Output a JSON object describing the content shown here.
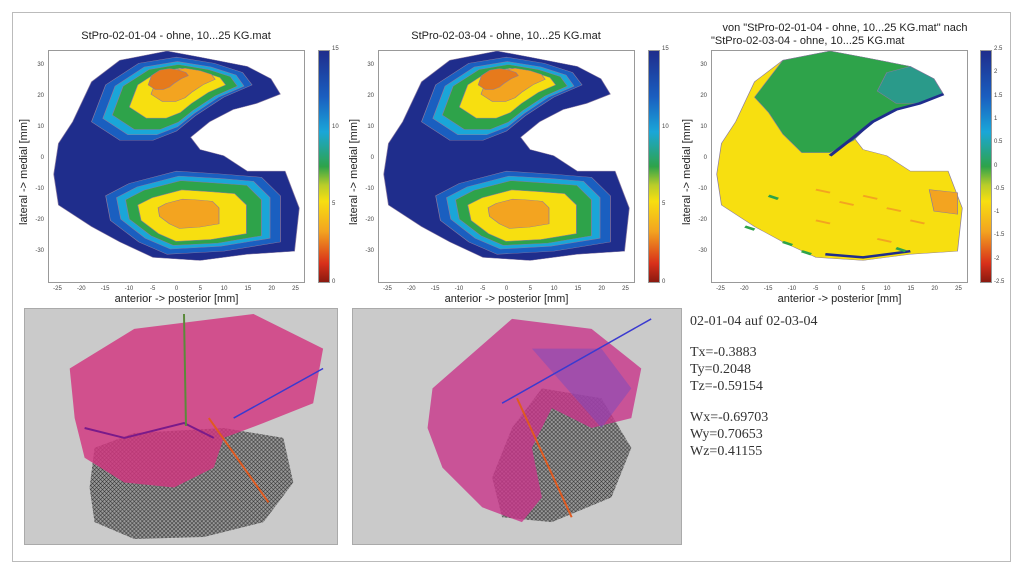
{
  "colors": {
    "dark_blue": "#1f2d8c",
    "blue": "#1a5fc0",
    "cyan": "#1aa6d8",
    "green": "#2ea34a",
    "yellow_green": "#b8cc2a",
    "yellow": "#f7df10",
    "orange": "#f3a420",
    "dark_orange": "#e67a1c",
    "red": "#d8301a",
    "dark_red": "#8a1a10"
  },
  "chart_data": [
    {
      "type": "heatmap",
      "title": "StPro-02-01-04 - ohne, 10...25 KG.mat",
      "xlabel": "anterior -> posterior [mm]",
      "ylabel": "lateral -> medial [mm]",
      "xlim": [
        -27,
        27
      ],
      "ylim": [
        -40,
        35
      ],
      "xticks": [
        "-25",
        "-20",
        "-15",
        "-10",
        "-5",
        "0",
        "5",
        "10",
        "15",
        "20",
        "25"
      ],
      "yticks": [
        "30",
        "20",
        "10",
        "0",
        "-10",
        "-20",
        "-30"
      ],
      "colorbar": {
        "range": [
          0,
          15
        ],
        "ticks": [
          "15",
          "10",
          "5",
          "0"
        ]
      }
    },
    {
      "type": "heatmap",
      "title": "StPro-02-03-04 - ohne, 10...25 KG.mat",
      "xlabel": "anterior -> posterior [mm]",
      "ylabel": "lateral -> medial [mm]",
      "xlim": [
        -27,
        27
      ],
      "ylim": [
        -40,
        35
      ],
      "xticks": [
        "-25",
        "-20",
        "-15",
        "-10",
        "-5",
        "0",
        "5",
        "10",
        "15",
        "20",
        "25"
      ],
      "yticks": [
        "30",
        "20",
        "10",
        "0",
        "-10",
        "-20",
        "-30"
      ],
      "colorbar": {
        "range": [
          0,
          15
        ],
        "ticks": [
          "15",
          "10",
          "5",
          "0"
        ]
      }
    },
    {
      "type": "heatmap",
      "title_line1": "von \"StPro-02-01-04 - ohne, 10...25 KG.mat\" nach",
      "title_line2": "\"StPro-02-03-04 - ohne, 10...25 KG.mat",
      "xlabel": "anterior -> posterior [mm]",
      "ylabel": "lateral -> medial [mm]",
      "xlim": [
        -27,
        27
      ],
      "ylim": [
        -40,
        35
      ],
      "xticks": [
        "-25",
        "-20",
        "-15",
        "-10",
        "-5",
        "0",
        "5",
        "10",
        "15",
        "20",
        "25"
      ],
      "yticks": [
        "30",
        "20",
        "10",
        "0",
        "-10",
        "-20",
        "-30"
      ],
      "colorbar": {
        "range": [
          -2.5,
          2.5
        ],
        "ticks": [
          "2.5",
          "2",
          "1.5",
          "1",
          "0.5",
          "0",
          "-0.5",
          "-1",
          "-1.5",
          "-2",
          "-2.5"
        ]
      }
    }
  ],
  "registration": {
    "heading": "02-01-04 auf 02-03-04",
    "translation": [
      "Tx=-0.3883",
      "Ty=0.2048",
      "Tz=-0.59154"
    ],
    "rotation": [
      "Wx=-0.69703",
      "Wy=0.70653",
      "Wz=0.41155"
    ]
  }
}
